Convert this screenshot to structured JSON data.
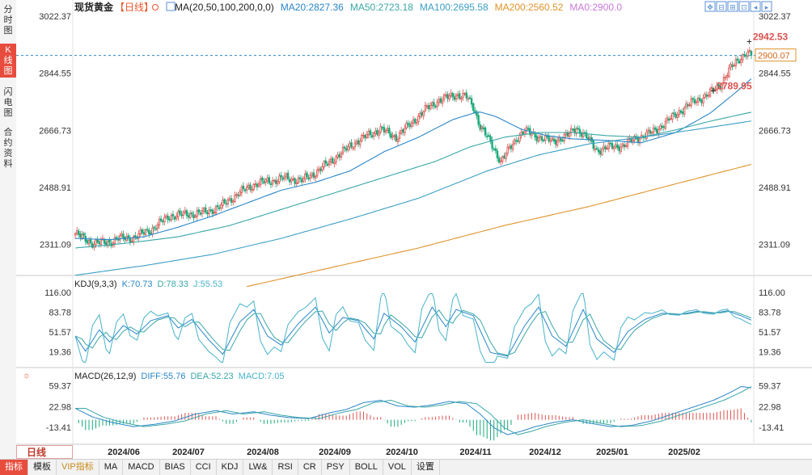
{
  "sidebar": {
    "tabs": [
      {
        "label": "分时图",
        "active": false
      },
      {
        "label": "K线图",
        "active": true
      },
      {
        "label": "闪电图",
        "active": false
      },
      {
        "label": "合约资料",
        "active": false
      }
    ]
  },
  "header": {
    "title": "现货黄金",
    "period_tag": "【日线】",
    "ma_label": "MA(20,50,100,200,0,0)",
    "ma_values": [
      {
        "label": "MA20:2827.36",
        "color": "#2a86c8"
      },
      {
        "label": "MA50:2723.18",
        "color": "#3aa6a6"
      },
      {
        "label": "MA100:2695.58",
        "color": "#3b9fc6"
      },
      {
        "label": "MA200:2560.52",
        "color": "#e0932b"
      },
      {
        "label": "MA0:2900.0",
        "color": "#c97ad8"
      }
    ]
  },
  "toolbar": {
    "icons": [
      "move-icon",
      "zoom-out-icon",
      "zoom-in-icon",
      "reset-icon",
      "scroll-left-icon",
      "scroll-right-icon"
    ]
  },
  "chart_data": {
    "type": "candlestick",
    "x_labels": [
      "2024/06",
      "2024/07",
      "2024/08",
      "2024/09",
      "2024/10",
      "2024/11",
      "2024/12",
      "2025/01",
      "2025/02"
    ],
    "price_axis": {
      "ticks": [
        "3022.37",
        "2844.55",
        "2666.73",
        "2488.91",
        "2311.09"
      ],
      "range": [
        2222,
        3022.37
      ]
    },
    "current_price": "2900.07",
    "annotations": [
      {
        "label": "2789.95",
        "value": 2789.95
      },
      {
        "label": "2942.53",
        "value": 2942.53
      }
    ],
    "price_keypoints": [
      [
        0,
        2345
      ],
      [
        10,
        2315
      ],
      [
        20,
        2318
      ],
      [
        25,
        2330
      ],
      [
        34,
        2332
      ],
      [
        45,
        2360
      ],
      [
        55,
        2400
      ],
      [
        65,
        2405
      ],
      [
        75,
        2410
      ],
      [
        85,
        2430
      ],
      [
        95,
        2470
      ],
      [
        105,
        2500
      ],
      [
        115,
        2510
      ],
      [
        122,
        2518
      ],
      [
        132,
        2510
      ],
      [
        140,
        2535
      ],
      [
        150,
        2575
      ],
      [
        162,
        2625
      ],
      [
        172,
        2655
      ],
      [
        178,
        2670
      ],
      [
        187,
        2645
      ],
      [
        198,
        2700
      ],
      [
        205,
        2735
      ],
      [
        212,
        2760
      ],
      [
        222,
        2778
      ],
      [
        228,
        2770
      ],
      [
        232,
        2740
      ],
      [
        236,
        2680
      ],
      [
        243,
        2620
      ],
      [
        248,
        2570
      ],
      [
        252,
        2600
      ],
      [
        258,
        2648
      ],
      [
        262,
        2665
      ],
      [
        268,
        2650
      ],
      [
        278,
        2632
      ],
      [
        287,
        2650
      ],
      [
        292,
        2675
      ],
      [
        298,
        2645
      ],
      [
        304,
        2605
      ],
      [
        312,
        2615
      ],
      [
        320,
        2620
      ],
      [
        326,
        2640
      ],
      [
        336,
        2660
      ],
      [
        344,
        2690
      ],
      [
        352,
        2725
      ],
      [
        360,
        2755
      ],
      [
        368,
        2775
      ],
      [
        376,
        2810
      ],
      [
        382,
        2860
      ],
      [
        387,
        2890
      ],
      [
        391,
        2908
      ],
      [
        394,
        2900
      ]
    ],
    "ma_lines": [
      {
        "name": "MA20",
        "color": "#2a86c8",
        "points": [
          [
            0,
            2330
          ],
          [
            20,
            2326
          ],
          [
            40,
            2335
          ],
          [
            60,
            2365
          ],
          [
            80,
            2400
          ],
          [
            100,
            2440
          ],
          [
            120,
            2480
          ],
          [
            140,
            2505
          ],
          [
            160,
            2540
          ],
          [
            180,
            2600
          ],
          [
            200,
            2645
          ],
          [
            220,
            2700
          ],
          [
            235,
            2725
          ],
          [
            245,
            2710
          ],
          [
            260,
            2670
          ],
          [
            275,
            2650
          ],
          [
            290,
            2640
          ],
          [
            310,
            2635
          ],
          [
            330,
            2628
          ],
          [
            350,
            2660
          ],
          [
            370,
            2720
          ],
          [
            385,
            2785
          ],
          [
            394,
            2827.36
          ]
        ]
      },
      {
        "name": "MA50",
        "color": "#3aa6a6",
        "points": [
          [
            0,
            2300
          ],
          [
            30,
            2315
          ],
          [
            60,
            2335
          ],
          [
            90,
            2370
          ],
          [
            120,
            2420
          ],
          [
            150,
            2470
          ],
          [
            180,
            2520
          ],
          [
            210,
            2570
          ],
          [
            230,
            2615
          ],
          [
            250,
            2645
          ],
          [
            270,
            2660
          ],
          [
            290,
            2660
          ],
          [
            310,
            2650
          ],
          [
            330,
            2645
          ],
          [
            350,
            2668
          ],
          [
            370,
            2695
          ],
          [
            394,
            2723.18
          ]
        ]
      },
      {
        "name": "MA100",
        "color": "#3b9fc6",
        "points": [
          [
            0,
            2215
          ],
          [
            40,
            2245
          ],
          [
            80,
            2280
          ],
          [
            120,
            2330
          ],
          [
            160,
            2390
          ],
          [
            200,
            2455
          ],
          [
            240,
            2540
          ],
          [
            270,
            2590
          ],
          [
            300,
            2625
          ],
          [
            330,
            2645
          ],
          [
            360,
            2668
          ],
          [
            394,
            2695.58
          ]
        ]
      },
      {
        "name": "MA200",
        "color": "#e0932b",
        "points": [
          [
            100,
            2180
          ],
          [
            150,
            2240
          ],
          [
            200,
            2300
          ],
          [
            250,
            2370
          ],
          [
            300,
            2430
          ],
          [
            350,
            2500
          ],
          [
            394,
            2560.52
          ]
        ]
      }
    ],
    "kdj": {
      "label": "KDJ(9,3,3)",
      "values": [
        {
          "label": "K:70.73",
          "color": "#2a86c8"
        },
        {
          "label": "D:78.33",
          "color": "#3aa6a6"
        },
        {
          "label": "J:55.53",
          "color": "#48b3c9"
        }
      ],
      "ticks": [
        "116.00",
        "83.78",
        "51.57",
        "19.36"
      ],
      "range": [
        0,
        116
      ],
      "keypoints": [
        [
          0,
          45
        ],
        [
          6,
          20
        ],
        [
          14,
          55
        ],
        [
          20,
          35
        ],
        [
          28,
          62
        ],
        [
          36,
          48
        ],
        [
          44,
          70
        ],
        [
          54,
          78
        ],
        [
          60,
          58
        ],
        [
          68,
          72
        ],
        [
          78,
          38
        ],
        [
          86,
          15
        ],
        [
          96,
          68
        ],
        [
          104,
          88
        ],
        [
          112,
          45
        ],
        [
          120,
          30
        ],
        [
          130,
          65
        ],
        [
          140,
          92
        ],
        [
          148,
          50
        ],
        [
          156,
          75
        ],
        [
          165,
          70
        ],
        [
          174,
          40
        ],
        [
          180,
          82
        ],
        [
          190,
          60
        ],
        [
          198,
          35
        ],
        [
          208,
          92
        ],
        [
          216,
          60
        ],
        [
          222,
          88
        ],
        [
          232,
          78
        ],
        [
          242,
          18
        ],
        [
          252,
          12
        ],
        [
          262,
          62
        ],
        [
          270,
          92
        ],
        [
          278,
          45
        ],
        [
          286,
          28
        ],
        [
          296,
          88
        ],
        [
          304,
          40
        ],
        [
          314,
          18
        ],
        [
          322,
          52
        ],
        [
          332,
          72
        ],
        [
          342,
          82
        ],
        [
          352,
          80
        ],
        [
          362,
          85
        ],
        [
          372,
          82
        ],
        [
          380,
          86
        ],
        [
          388,
          78
        ],
        [
          394,
          70.73
        ]
      ]
    },
    "macd": {
      "label": "MACD(26,12,9)",
      "values": [
        {
          "label": "DIFF:55.76",
          "color": "#2a86c8"
        },
        {
          "label": "DEA:52.23",
          "color": "#3aa6a6"
        },
        {
          "label": "MACD:7.05",
          "color": "#48b3c9"
        }
      ],
      "ticks": [
        "59.37",
        "22.98",
        "-13.41"
      ],
      "range": [
        -40,
        70
      ],
      "keypoints": [
        [
          0,
          20
        ],
        [
          10,
          5
        ],
        [
          22,
          -5
        ],
        [
          34,
          -12
        ],
        [
          46,
          -8
        ],
        [
          58,
          -2
        ],
        [
          70,
          10
        ],
        [
          82,
          16
        ],
        [
          92,
          10
        ],
        [
          104,
          14
        ],
        [
          114,
          8
        ],
        [
          124,
          4
        ],
        [
          136,
          2
        ],
        [
          148,
          12
        ],
        [
          158,
          18
        ],
        [
          168,
          30
        ],
        [
          178,
          34
        ],
        [
          188,
          24
        ],
        [
          198,
          22
        ],
        [
          208,
          26
        ],
        [
          218,
          32
        ],
        [
          228,
          28
        ],
        [
          236,
          10
        ],
        [
          244,
          -14
        ],
        [
          252,
          -26
        ],
        [
          260,
          -20
        ],
        [
          268,
          -12
        ],
        [
          280,
          -4
        ],
        [
          290,
          0
        ],
        [
          300,
          -6
        ],
        [
          312,
          -12
        ],
        [
          324,
          -10
        ],
        [
          336,
          -2
        ],
        [
          348,
          10
        ],
        [
          360,
          22
        ],
        [
          372,
          34
        ],
        [
          382,
          48
        ],
        [
          388,
          58
        ],
        [
          394,
          55.76
        ]
      ]
    }
  },
  "bottom": {
    "period_label": "日线",
    "tabs": [
      {
        "label": "指标",
        "active": true
      },
      {
        "label": "模板"
      },
      {
        "label": "VIP指标",
        "vip": true
      },
      {
        "label": "MA"
      },
      {
        "label": "MACD"
      },
      {
        "label": "BIAS"
      },
      {
        "label": "CCI"
      },
      {
        "label": "KDJ"
      },
      {
        "label": "LW&"
      },
      {
        "label": "RSI"
      },
      {
        "label": "CR"
      },
      {
        "label": "PSY"
      },
      {
        "label": "BOLL"
      },
      {
        "label": "VOL"
      },
      {
        "label": "设置"
      }
    ]
  }
}
